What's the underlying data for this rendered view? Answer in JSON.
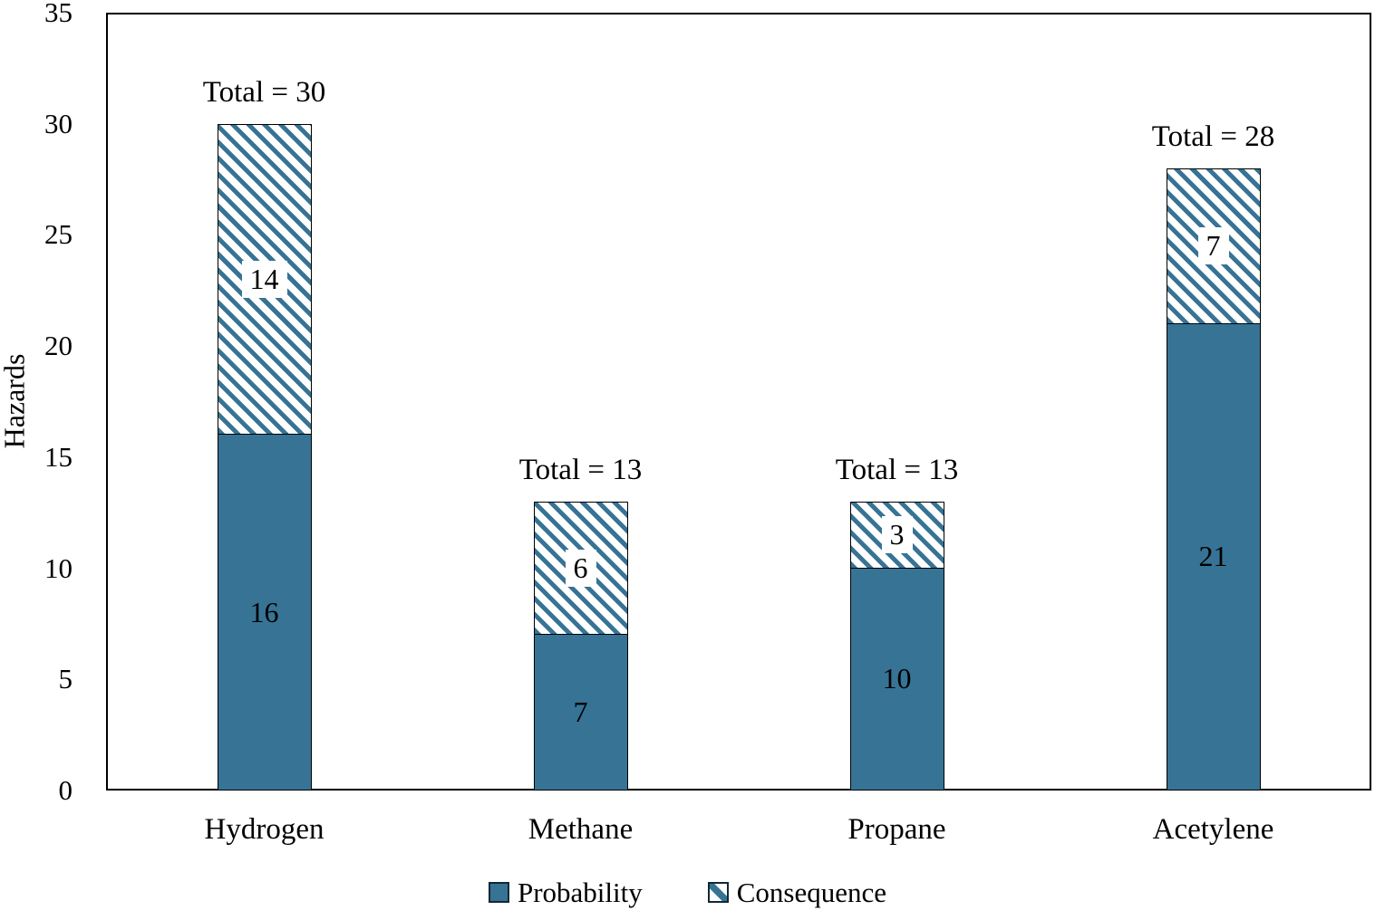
{
  "chart_data": {
    "type": "bar",
    "stacked": true,
    "categories": [
      "Hydrogen",
      "Methane",
      "Propane",
      "Acetylene"
    ],
    "series": [
      {
        "name": "Probability",
        "style": "solid",
        "values": [
          16,
          7,
          10,
          21
        ]
      },
      {
        "name": "Consequence",
        "style": "hatched",
        "values": [
          14,
          6,
          3,
          7
        ]
      }
    ],
    "totals": [
      30,
      13,
      13,
      28
    ],
    "total_labels": [
      "Total = 30",
      "Total = 13",
      "Total = 13",
      "Total = 28"
    ],
    "title": "",
    "xlabel": "",
    "ylabel": "Hazards",
    "ylim": [
      0,
      35
    ],
    "yticks": [
      0,
      5,
      10,
      15,
      20,
      25,
      30,
      35
    ],
    "grid": false,
    "legend_position": "bottom-center",
    "hatch_direction": "diagonal-down"
  },
  "colors": {
    "bar_fill": "#377394",
    "hatch_stripe": "#377394",
    "hatch_background": "#ffffff",
    "bar_border": "#000000",
    "axis": "#000000",
    "text": "#000000"
  }
}
